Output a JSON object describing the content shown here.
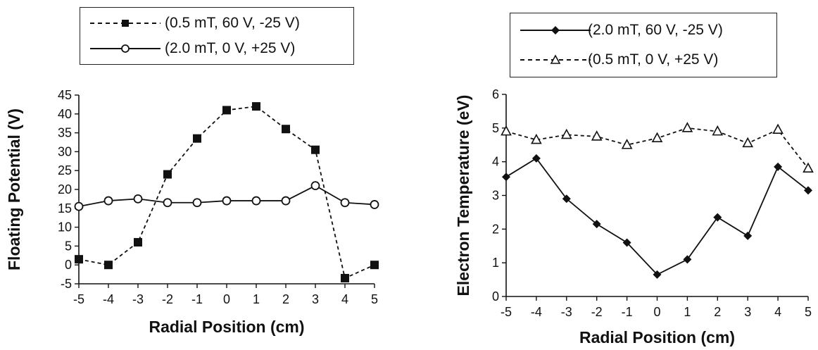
{
  "chart_data": [
    {
      "type": "line",
      "xlabel": "Radial Position (cm)",
      "ylabel": "Floating Potential (V)",
      "xlim": [
        -5,
        5
      ],
      "ylim": [
        -5,
        45
      ],
      "x_ticks": [
        "-5",
        "-4",
        "-3",
        "-2",
        "-1",
        "0",
        "1",
        "2",
        "3",
        "4",
        "5"
      ],
      "y_ticks": [
        "-5",
        "0",
        "5",
        "10",
        "15",
        "20",
        "25",
        "30",
        "35",
        "40",
        "45"
      ],
      "grid": false,
      "legend_position": "top",
      "x": [
        -5,
        -4,
        -3,
        -2,
        -1,
        0,
        1,
        2,
        3,
        4,
        5
      ],
      "series": [
        {
          "name": "(0.5 mT, 60 V, -25 V)",
          "marker": "filled-square",
          "line": "dashed",
          "values": [
            1.5,
            0,
            6,
            24,
            33.5,
            41,
            42,
            36,
            30.5,
            -3.5,
            0
          ]
        },
        {
          "name": "(2.0 mT, 0 V, +25 V)",
          "marker": "open-circle",
          "line": "solid",
          "values": [
            15.5,
            17,
            17.5,
            16.5,
            16.5,
            17,
            17,
            17,
            21,
            16.5,
            16
          ]
        }
      ]
    },
    {
      "type": "line",
      "xlabel": "Radial Position (cm)",
      "ylabel": "Electron Temperature (eV)",
      "xlim": [
        -5,
        5
      ],
      "ylim": [
        0,
        6
      ],
      "x_ticks": [
        "-5",
        "-4",
        "-3",
        "-2",
        "-1",
        "0",
        "1",
        "2",
        "3",
        "4",
        "5"
      ],
      "y_ticks": [
        "0",
        "1",
        "2",
        "3",
        "4",
        "5",
        "6"
      ],
      "grid": false,
      "legend_position": "top",
      "x": [
        -5,
        -4,
        -3,
        -2,
        -1,
        0,
        1,
        2,
        3,
        4,
        5
      ],
      "series": [
        {
          "name": "(2.0 mT, 60 V, -25 V)",
          "marker": "filled-diamond",
          "line": "solid",
          "values": [
            3.55,
            4.1,
            2.9,
            2.15,
            1.6,
            0.65,
            1.1,
            2.35,
            1.8,
            3.85,
            3.15
          ]
        },
        {
          "name": "(0.5 mT, 0 V, +25 V)",
          "marker": "open-triangle",
          "line": "dashed",
          "values": [
            4.9,
            4.65,
            4.8,
            4.75,
            4.5,
            4.7,
            5.0,
            4.9,
            4.55,
            4.95,
            3.8
          ]
        }
      ]
    }
  ]
}
